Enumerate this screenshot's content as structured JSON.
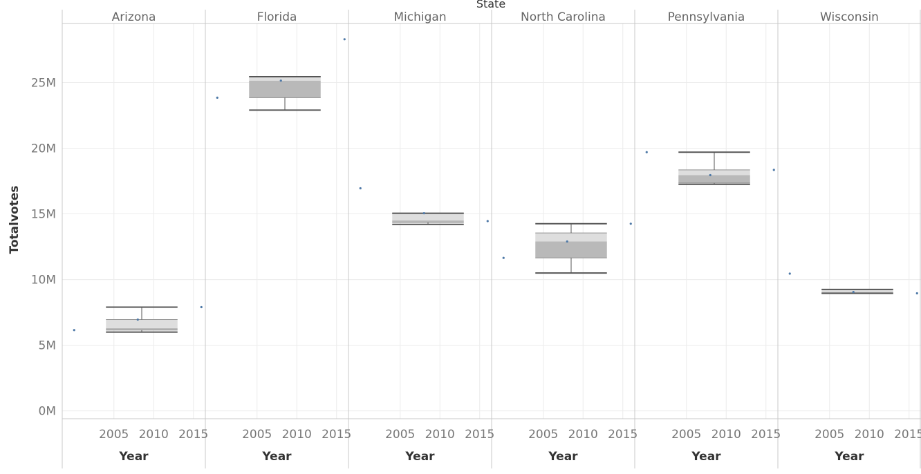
{
  "chart_data": {
    "type": "box",
    "title": "",
    "facet_label": "State",
    "xlabel": "Year",
    "ylabel": "Totalvotes",
    "ylim": [
      -600000,
      29500000
    ],
    "xlim": [
      1998.5,
      2016.5
    ],
    "y_ticks": [
      {
        "value": 0,
        "label": "0M"
      },
      {
        "value": 5000000,
        "label": "5M"
      },
      {
        "value": 10000000,
        "label": "10M"
      },
      {
        "value": 15000000,
        "label": "15M"
      },
      {
        "value": 20000000,
        "label": "20M"
      },
      {
        "value": 25000000,
        "label": "25M"
      }
    ],
    "x_ticks": [
      {
        "value": 2005,
        "label": "2005"
      },
      {
        "value": 2010,
        "label": "2010"
      },
      {
        "value": 2015,
        "label": "2015"
      }
    ],
    "grid": true,
    "colors": {
      "box_lower": "#b9b9b9",
      "box_upper": "#dedede",
      "whisker": "#555555",
      "point": "#4e79a7"
    },
    "box_x_range": [
      2004,
      2013
    ],
    "panels": [
      {
        "state": "Arizona",
        "min": 6000000,
        "q1": 6150000,
        "median": 6300000,
        "q3": 6950000,
        "max": 7900000,
        "points": [
          {
            "year": 2000,
            "value": 6150000
          },
          {
            "year": 2008,
            "value": 6950000
          },
          {
            "year": 2016,
            "value": 7900000
          }
        ]
      },
      {
        "state": "Florida",
        "min": 22900000,
        "q1": 23850000,
        "median": 25150000,
        "q3": 25450000,
        "max": 25450000,
        "points": [
          {
            "year": 2000,
            "value": 23850000
          },
          {
            "year": 2008,
            "value": 25150000
          },
          {
            "year": 2016,
            "value": 28300000
          }
        ]
      },
      {
        "state": "Michigan",
        "min": 14200000,
        "q1": 14350000,
        "median": 14500000,
        "q3": 15050000,
        "max": 15050000,
        "points": [
          {
            "year": 2000,
            "value": 16950000
          },
          {
            "year": 2008,
            "value": 15050000
          },
          {
            "year": 2016,
            "value": 14450000
          }
        ]
      },
      {
        "state": "North Carolina",
        "min": 10500000,
        "q1": 11650000,
        "median": 12900000,
        "q3": 13550000,
        "max": 14250000,
        "points": [
          {
            "year": 2000,
            "value": 11650000
          },
          {
            "year": 2008,
            "value": 12900000
          },
          {
            "year": 2016,
            "value": 14250000
          }
        ]
      },
      {
        "state": "Pennsylvania",
        "min": 17250000,
        "q1": 17350000,
        "median": 17950000,
        "q3": 18350000,
        "max": 19700000,
        "points": [
          {
            "year": 2000,
            "value": 19700000
          },
          {
            "year": 2008,
            "value": 17950000
          },
          {
            "year": 2016,
            "value": 18350000
          }
        ]
      },
      {
        "state": "Wisconsin",
        "min": 8950000,
        "q1": 8950000,
        "median": 9050000,
        "q3": 9250000,
        "max": 9250000,
        "points": [
          {
            "year": 2000,
            "value": 10450000
          },
          {
            "year": 2008,
            "value": 9050000
          },
          {
            "year": 2016,
            "value": 8950000
          }
        ]
      }
    ]
  }
}
